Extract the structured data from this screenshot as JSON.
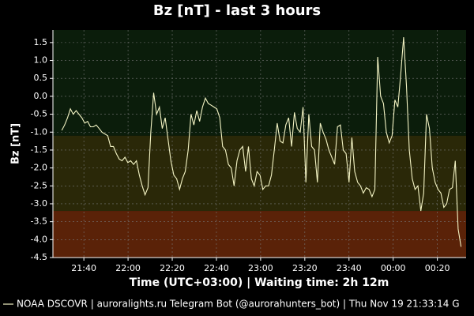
{
  "chart_data": {
    "type": "line",
    "title": "Bz [nT] - last 3 hours",
    "xlabel": "Time (UTC+03:00) | Waiting time: 2h 12m",
    "ylabel": "Bz [nT]",
    "footer": "| auroralights.ru Telegram Bot (@aurorahunters_bot) | Thu Nov 19 21:33:14 G",
    "grid": true,
    "background": "#000000",
    "bands": [
      {
        "from": -1.1,
        "to": 1.85,
        "color": "#0b1d0b"
      },
      {
        "from": -3.2,
        "to": -1.1,
        "color": "#2a2808"
      },
      {
        "from": -4.5,
        "to": -3.2,
        "color": "#5a2208"
      }
    ],
    "xlim": [
      1286,
      1473
    ],
    "ylim": [
      -4.5,
      1.85
    ],
    "xticks": [
      {
        "value": 1300,
        "label": "21:40"
      },
      {
        "value": 1320,
        "label": "22:00"
      },
      {
        "value": 1340,
        "label": "22:20"
      },
      {
        "value": 1360,
        "label": "22:40"
      },
      {
        "value": 1380,
        "label": "23:00"
      },
      {
        "value": 1400,
        "label": "23:20"
      },
      {
        "value": 1420,
        "label": "23:40"
      },
      {
        "value": 1440,
        "label": "00:00"
      },
      {
        "value": 1460,
        "label": "00:20"
      }
    ],
    "yticks": [
      1.5,
      {
        "value": 1,
        "label": "1.0"
      },
      0.5,
      {
        "value": 0,
        "label": "0.0"
      },
      -0.5,
      {
        "value": -1,
        "label": "-1.0"
      },
      -1.5,
      {
        "value": -2,
        "label": "-2.0"
      },
      -2.5,
      {
        "value": -3,
        "label": "-3.0"
      },
      -3.5,
      {
        "value": -4,
        "label": "-4.0"
      },
      -4.5
    ],
    "x": [
      1290,
      1291.3,
      1292.6,
      1293.9,
      1295.2,
      1296.5,
      1297.8,
      1299.1,
      1300.4,
      1301.7,
      1303,
      1304.3,
      1305.6,
      1306.9,
      1308.2,
      1309.5,
      1310.8,
      1312.1,
      1313.4,
      1314.7,
      1316,
      1317.3,
      1318.6,
      1319.9,
      1321.2,
      1322.5,
      1323.8,
      1325.1,
      1326.4,
      1327.7,
      1329,
      1330.3,
      1331.6,
      1332.9,
      1334.2,
      1335.5,
      1336.8,
      1338.1,
      1339.4,
      1340.7,
      1342,
      1343.3,
      1344.6,
      1345.9,
      1347.2,
      1348.5,
      1349.8,
      1351.1,
      1352.4,
      1353.7,
      1355,
      1356.3,
      1357.6,
      1358.9,
      1360.2,
      1361.5,
      1362.8,
      1364.1,
      1365.4,
      1366.7,
      1368,
      1369.3,
      1370.6,
      1371.9,
      1373.2,
      1374.5,
      1375.8,
      1377.1,
      1378.4,
      1379.7,
      1381,
      1382.3,
      1383.6,
      1384.9,
      1386.2,
      1387.5,
      1388.8,
      1390.1,
      1391.4,
      1392.7,
      1394,
      1395.3,
      1396.6,
      1397.9,
      1399.2,
      1400.5,
      1401.8,
      1403.1,
      1404.4,
      1405.7,
      1407,
      1408.3,
      1409.6,
      1410.9,
      1412.2,
      1413.5,
      1414.8,
      1416.1,
      1417.4,
      1418.7,
      1420,
      1421.3,
      1422.6,
      1423.9,
      1425.2,
      1426.5,
      1427.8,
      1429.1,
      1430.4,
      1431.7,
      1433,
      1434.3,
      1435.6,
      1436.9,
      1438.2,
      1439.5,
      1440.8,
      1442.1,
      1443.4,
      1444.7,
      1446,
      1447.3,
      1448.6,
      1449.9,
      1451.2,
      1452.5,
      1453.8,
      1455.1,
      1456.4,
      1457.7,
      1459,
      1460.3,
      1461.6,
      1462.9,
      1464.2,
      1465.5,
      1466.8,
      1468.1,
      1469.4,
      1470.7
    ],
    "series": [
      {
        "name": "NOAA DSCOVR",
        "color": "#f4f4c4",
        "values": [
          -0.95,
          -0.8,
          -0.6,
          -0.35,
          -0.5,
          -0.4,
          -0.5,
          -0.6,
          -0.75,
          -0.7,
          -0.85,
          -0.85,
          -0.8,
          -0.9,
          -1.0,
          -1.05,
          -1.1,
          -1.4,
          -1.4,
          -1.6,
          -1.75,
          -1.8,
          -1.7,
          -1.85,
          -1.8,
          -1.9,
          -1.8,
          -2.2,
          -2.5,
          -2.75,
          -2.55,
          -1.0,
          0.1,
          -0.5,
          -0.3,
          -0.9,
          -0.6,
          -1.2,
          -1.8,
          -2.2,
          -2.3,
          -2.6,
          -2.3,
          -2.1,
          -1.5,
          -0.5,
          -0.8,
          -0.4,
          -0.7,
          -0.3,
          -0.05,
          -0.2,
          -0.25,
          -0.3,
          -0.35,
          -0.6,
          -1.4,
          -1.5,
          -1.9,
          -2.0,
          -2.5,
          -1.8,
          -1.5,
          -1.4,
          -2.1,
          -1.4,
          -2.3,
          -2.5,
          -2.1,
          -2.2,
          -2.6,
          -2.5,
          -2.5,
          -2.2,
          -1.5,
          -0.75,
          -1.25,
          -1.3,
          -0.8,
          -0.6,
          -1.4,
          -0.45,
          -0.9,
          -1.0,
          -0.3,
          -2.4,
          -0.5,
          -1.4,
          -1.5,
          -2.4,
          -0.75,
          -1.0,
          -1.2,
          -1.5,
          -1.7,
          -1.9,
          -0.85,
          -0.8,
          -1.5,
          -1.6,
          -2.4,
          -1.15,
          -2.1,
          -2.4,
          -2.5,
          -2.7,
          -2.55,
          -2.6,
          -2.8,
          -2.6,
          1.1,
          0.0,
          -0.2,
          -1.0,
          -1.3,
          -1.1,
          -0.1,
          -0.3,
          0.6,
          1.65,
          0.3,
          -1.5,
          -2.3,
          -2.6,
          -2.5,
          -3.2,
          -2.7,
          -0.5,
          -0.9,
          -2.0,
          -2.4,
          -2.6,
          -2.7,
          -3.1,
          -3.0,
          -2.6,
          -2.55,
          -1.8,
          -3.7,
          -4.2
        ]
      }
    ]
  }
}
